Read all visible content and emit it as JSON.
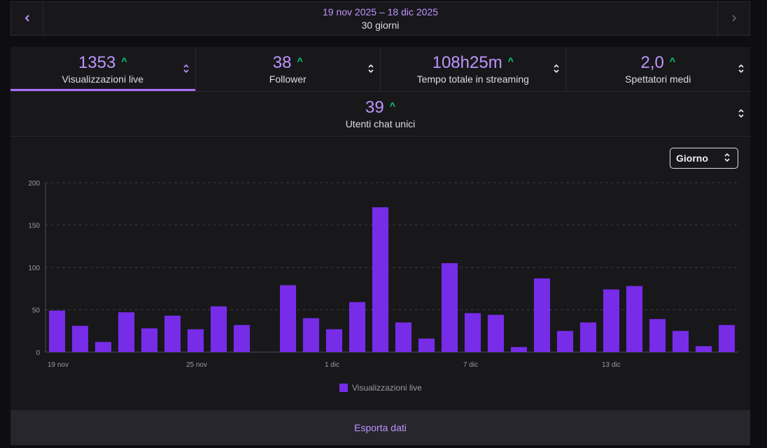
{
  "nav": {
    "date_range": "19 nov 2025 – 18 dic 2025",
    "days": "30 giorni",
    "prev_icon": "chevron-left-icon",
    "next_icon": "chevron-right-icon"
  },
  "stats": [
    {
      "value": "1353",
      "label": "Visualizzazioni live",
      "trend": "up",
      "active": true
    },
    {
      "value": "38",
      "label": "Follower",
      "trend": "up",
      "active": false
    },
    {
      "value": "108h25m",
      "label": "Tempo totale in streaming",
      "trend": "up",
      "active": false
    },
    {
      "value": "2,0",
      "label": "Spettatori medi",
      "trend": "up",
      "active": false
    }
  ],
  "stat_chat": {
    "value": "39",
    "label": "Utenti chat unici",
    "trend": "up"
  },
  "granularity_select": {
    "value": "Giorno"
  },
  "colors": {
    "accent": "#bf94ff",
    "bar": "#772ce8",
    "trend_up": "#00d974"
  },
  "chart_data": {
    "type": "bar",
    "categories": [
      "19 nov",
      "20 nov",
      "21 nov",
      "22 nov",
      "23 nov",
      "24 nov",
      "25 nov",
      "26 nov",
      "27 nov",
      "28 nov",
      "29 nov",
      "30 nov",
      "1 dic",
      "2 dic",
      "3 dic",
      "4 dic",
      "5 dic",
      "6 dic",
      "7 dic",
      "8 dic",
      "9 dic",
      "10 dic",
      "11 dic",
      "12 dic",
      "13 dic",
      "14 dic",
      "15 dic",
      "16 dic",
      "17 dic",
      "18 dic"
    ],
    "tick_labels": [
      "19 nov",
      "25 nov",
      "1 dic",
      "7 dic",
      "13 dic"
    ],
    "tick_indices": [
      0,
      6,
      12,
      18,
      24
    ],
    "series": [
      {
        "name": "Visualizzazioni live",
        "values": [
          49,
          31,
          12,
          47,
          28,
          43,
          27,
          54,
          32,
          0,
          79,
          40,
          27,
          59,
          171,
          35,
          16,
          105,
          46,
          44,
          6,
          87,
          25,
          35,
          74,
          78,
          39,
          25,
          7,
          32
        ]
      }
    ],
    "ylim": [
      0,
      200
    ],
    "yticks": [
      0,
      50,
      100,
      150,
      200
    ],
    "grid": true,
    "legend": "bottom-center"
  },
  "export_label": "Esporta dati"
}
